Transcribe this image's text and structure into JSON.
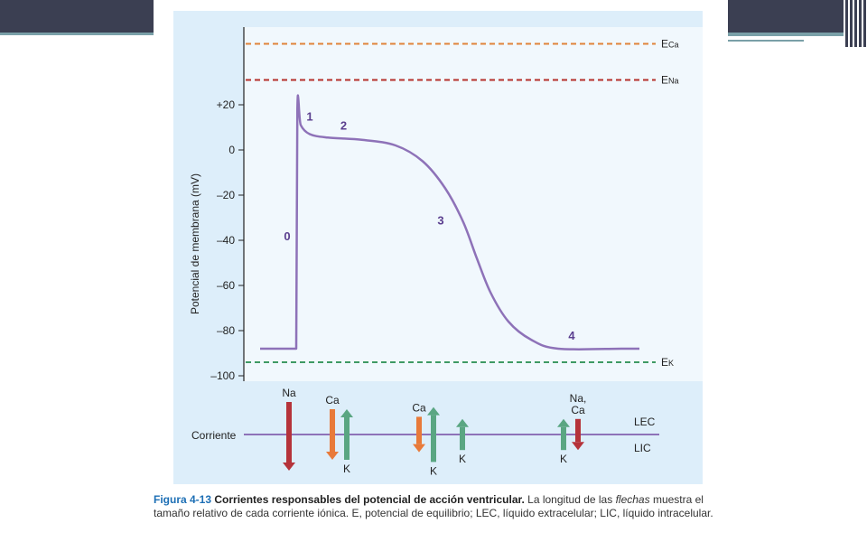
{
  "colors": {
    "slide_bar": "#3b3f52",
    "slide_accent": "#7aa0a8",
    "panel_bg": "#ddeefa",
    "curve": "#8e72b8",
    "eca_line": "#e0843a",
    "ena_line": "#b5302c",
    "ek_line": "#3f9a64",
    "na_arrow": "#b5333a",
    "ca_arrow": "#e87a3a",
    "k_arrow": "#5aa682",
    "baseline": "#8e72b8"
  },
  "chart_data": {
    "type": "line",
    "ylabel": "Potencial de membrana (mV)",
    "ylim": [
      -100,
      50
    ],
    "y_ticks": [
      {
        "value": 20,
        "label": "+20"
      },
      {
        "value": 0,
        "label": "0"
      },
      {
        "value": -20,
        "label": "–20"
      },
      {
        "value": -40,
        "label": "–40"
      },
      {
        "value": -60,
        "label": "–60"
      },
      {
        "value": -80,
        "label": "–80"
      },
      {
        "value": -100,
        "label": "–100"
      }
    ],
    "equilibrium_lines": [
      {
        "name": "Eca",
        "main": "E",
        "sub": "Ca",
        "value": 47,
        "color": "#e0843a"
      },
      {
        "name": "Ena",
        "main": "E",
        "sub": "Na",
        "value": 31,
        "color": "#b5302c"
      },
      {
        "name": "Ek",
        "main": "E",
        "sub": "K",
        "value": -94,
        "color": "#3f9a64"
      }
    ],
    "action_potential": {
      "points": [
        [
          0,
          -88
        ],
        [
          16,
          -88
        ],
        [
          16.5,
          18
        ],
        [
          18,
          11
        ],
        [
          22,
          7
        ],
        [
          30,
          5.5
        ],
        [
          45,
          4.5
        ],
        [
          60,
          2
        ],
        [
          72,
          -5
        ],
        [
          82,
          -17
        ],
        [
          90,
          -32
        ],
        [
          96,
          -48
        ],
        [
          102,
          -63
        ],
        [
          110,
          -76
        ],
        [
          120,
          -84
        ],
        [
          132,
          -88
        ],
        [
          160,
          -88
        ],
        [
          168,
          -88
        ]
      ]
    },
    "phase_labels": [
      {
        "label": "0",
        "x": 12,
        "y": -40
      },
      {
        "label": "1",
        "x": 22,
        "y": 13
      },
      {
        "label": "2",
        "x": 37,
        "y": 9
      },
      {
        "label": "3",
        "x": 80,
        "y": -33
      },
      {
        "label": "4",
        "x": 138,
        "y": -84
      }
    ]
  },
  "current_panel": {
    "row_label": "Corriente",
    "side_top": "LEC",
    "side_bottom": "LIC",
    "arrows": [
      {
        "ion": "Na",
        "dir": "in",
        "length": 3.0,
        "pos": 2,
        "color": "#b5333a",
        "label": "Na",
        "label_side": "top"
      },
      {
        "ion": "Ca",
        "dir": "in",
        "length": 2.0,
        "pos": 5,
        "color": "#e87a3a",
        "label": "Ca",
        "label_side": "top"
      },
      {
        "ion": "K",
        "dir": "out",
        "length": 2.0,
        "pos": 6,
        "color": "#5aa682",
        "label": "K",
        "label_side": "bottom"
      },
      {
        "ion": "Ca",
        "dir": "in",
        "length": 1.3,
        "pos": 11,
        "color": "#e87a3a",
        "label": "Ca",
        "label_side": "top"
      },
      {
        "ion": "K",
        "dir": "out",
        "length": 2.2,
        "pos": 12,
        "color": "#5aa682",
        "label": "K",
        "label_side": "bottom"
      },
      {
        "ion": "K",
        "dir": "out",
        "length": 1.1,
        "pos": 14,
        "color": "#5aa682",
        "label": "K",
        "label_side": "bottom"
      },
      {
        "ion": "K",
        "dir": "out",
        "length": 1.1,
        "pos": 21,
        "color": "#5aa682",
        "label": "K",
        "label_side": "bottom"
      },
      {
        "ion": "NaCa",
        "dir": "in",
        "length": 1.1,
        "pos": 22,
        "color": "#b5333a",
        "label": "Na,\nCa",
        "label_side": "top"
      }
    ]
  },
  "caption": {
    "fig_num": "Figura 4-13",
    "fig_title": "Corrientes responsables del potencial de acción ventricular.",
    "text_1": " La longitud de las ",
    "text_em": "flechas",
    "text_2": " muestra el tamaño relativo de cada corriente iónica. E, potencial de equilibrio; LEC, líquido extracelular; LIC, líquido intracelular."
  }
}
